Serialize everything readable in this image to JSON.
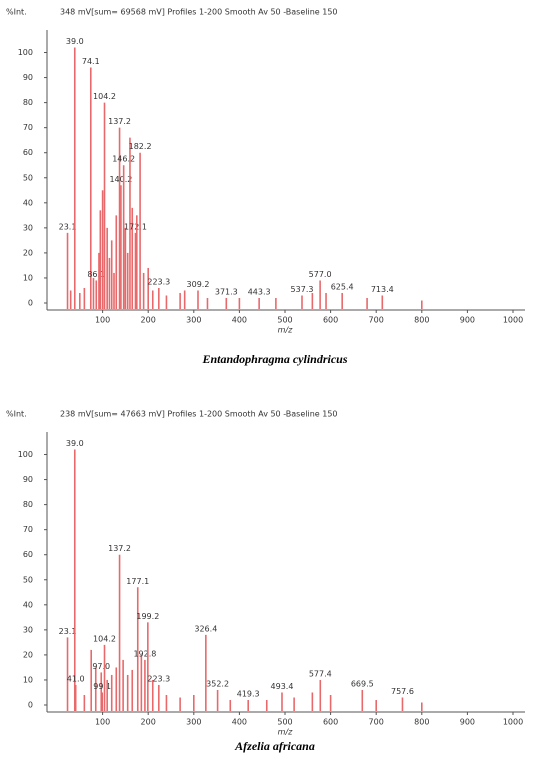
{
  "chart_data": [
    {
      "type": "bar",
      "ylabel": "%Int.",
      "subtitle": "348 mV[sum= 69568 mV]  Profiles 1-200 Smooth Av 50 -Baseline 150",
      "xlabel": "m/z",
      "caption": "Entandophragma cylindricus",
      "color": "#e8696b",
      "xlim": [
        0,
        1000
      ],
      "xticks": [
        100,
        200,
        300,
        400,
        500,
        600,
        700,
        800,
        900,
        1000
      ],
      "ylim": [
        0,
        105
      ],
      "yticks": [
        0,
        10,
        20,
        30,
        40,
        50,
        60,
        70,
        80,
        90,
        100
      ],
      "x": [
        23.1,
        30,
        39.0,
        50,
        60,
        74.1,
        80,
        86.1,
        92,
        95,
        100,
        104.2,
        110,
        115,
        120,
        125,
        130,
        137.2,
        140.2,
        146.2,
        150,
        155,
        160,
        165,
        172.1,
        175,
        182.2,
        190,
        200,
        210,
        223.3,
        240,
        270,
        280,
        309.2,
        330,
        371.3,
        400,
        443.3,
        480,
        537.3,
        560,
        577.0,
        590,
        625.4,
        680,
        713.4,
        800
      ],
      "values": [
        28,
        5,
        102,
        4,
        6,
        94,
        10,
        9,
        20,
        37,
        45,
        80,
        30,
        18,
        25,
        12,
        35,
        70,
        47,
        55,
        30,
        20,
        66,
        38,
        28,
        35,
        60,
        12,
        14,
        5,
        6,
        3,
        4,
        5,
        5,
        2,
        2,
        2,
        2,
        2,
        3,
        4,
        9,
        4,
        4,
        2,
        3,
        1
      ],
      "x_labels": [
        "23.1",
        null,
        "39.0",
        null,
        null,
        "74.1",
        null,
        "86.1",
        null,
        null,
        null,
        "104.2",
        null,
        null,
        null,
        null,
        null,
        "137.2",
        "140.2",
        "146.2",
        null,
        null,
        null,
        null,
        "172.1",
        null,
        "182.2",
        null,
        null,
        null,
        "223.3",
        null,
        null,
        null,
        "309.2",
        null,
        "371.3",
        null,
        "443.3",
        null,
        "537.3",
        null,
        "577.0",
        null,
        "625.4",
        null,
        "713.4",
        null
      ]
    },
    {
      "type": "bar",
      "ylabel": "%Int.",
      "subtitle": "238 mV[sum= 47663 mV]  Profiles 1-200 Smooth Av 50 -Baseline 150",
      "xlabel": "m/z",
      "caption": "Afzelia africana",
      "color": "#e8696b",
      "xlim": [
        0,
        1000
      ],
      "xticks": [
        100,
        200,
        300,
        400,
        500,
        600,
        700,
        800,
        900,
        1000
      ],
      "ylim": [
        0,
        105
      ],
      "yticks": [
        0,
        10,
        20,
        30,
        40,
        50,
        60,
        70,
        80,
        90,
        100
      ],
      "x": [
        23.1,
        39.0,
        41.0,
        60,
        75,
        85,
        97.0,
        99.1,
        104.2,
        110,
        120,
        130,
        137.2,
        145,
        155,
        165,
        177.1,
        185,
        192.8,
        199.2,
        210,
        223.3,
        240,
        270,
        300,
        326.4,
        352.2,
        380,
        419.3,
        460,
        493.4,
        520,
        560,
        577.4,
        600,
        669.5,
        700,
        757.6,
        800
      ],
      "values": [
        27,
        102,
        8,
        4,
        22,
        15,
        13,
        5,
        24,
        10,
        12,
        15,
        60,
        18,
        12,
        14,
        47,
        20,
        18,
        33,
        10,
        8,
        4,
        3,
        4,
        28,
        6,
        2,
        2,
        2,
        5,
        3,
        5,
        10,
        4,
        6,
        2,
        3,
        1
      ],
      "x_labels": [
        "23.1",
        "39.0",
        "41.0",
        null,
        null,
        null,
        "97.0",
        "99.1",
        "104.2",
        null,
        null,
        null,
        "137.2",
        null,
        null,
        null,
        "177.1",
        null,
        "192.8",
        "199.2",
        null,
        "223.3",
        null,
        null,
        null,
        "326.4",
        "352.2",
        null,
        "419.3",
        null,
        "493.4",
        null,
        null,
        "577.4",
        null,
        "669.5",
        null,
        "757.6",
        null
      ]
    }
  ]
}
